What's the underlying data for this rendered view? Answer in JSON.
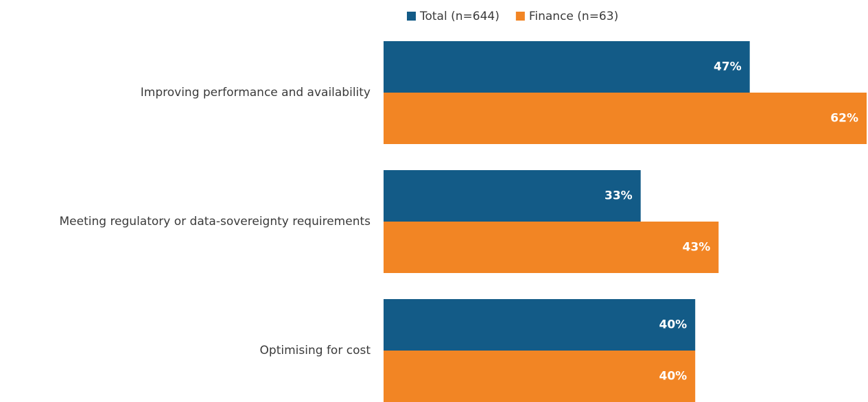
{
  "chart_data": {
    "type": "hbar",
    "categories": [
      "Improving performance and availability",
      "Meeting regulatory or data-sovereignty requirements",
      "Optimising for cost"
    ],
    "series": [
      {
        "name": "Total (n=644)",
        "color": "#135b87",
        "values": [
          47,
          33,
          40
        ],
        "value_labels": [
          "47%",
          "33%",
          "40%"
        ]
      },
      {
        "name": "Finance (n=63)",
        "color": "#f28524",
        "values": [
          62,
          43,
          40
        ],
        "value_labels": [
          "62%",
          "43%",
          "40%"
        ]
      }
    ],
    "legend": "top"
  }
}
